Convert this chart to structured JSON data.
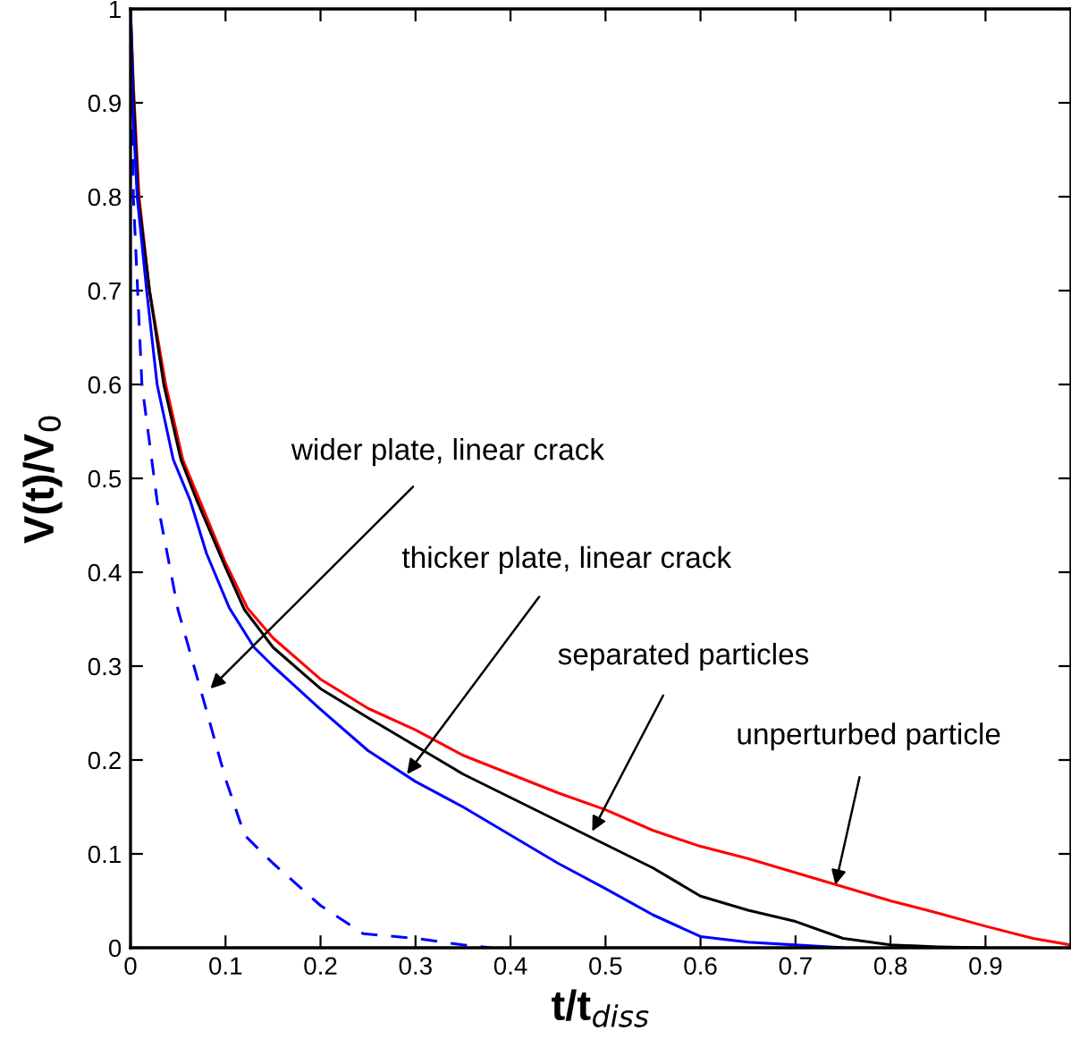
{
  "chart_data": {
    "type": "line",
    "xlabel": "t/t$_{diss}$",
    "ylabel": "V(t)/V$_{0}$",
    "xlim": [
      0,
      0.99
    ],
    "ylim": [
      0,
      1
    ],
    "xticks": [
      0,
      0.1,
      0.2,
      0.3,
      0.4,
      0.5,
      0.6,
      0.7,
      0.8,
      0.9
    ],
    "yticks": [
      0,
      0.1,
      0.2,
      0.3,
      0.4,
      0.5,
      0.6,
      0.7,
      0.8,
      0.9,
      1
    ],
    "grid": false,
    "legend": false,
    "series": [
      {
        "color": "#ff0000",
        "line_style": "solid",
        "x": [
          0,
          0.003,
          0.009,
          0.02,
          0.037,
          0.055,
          0.073,
          0.1,
          0.123,
          0.15,
          0.2,
          0.25,
          0.3,
          0.35,
          0.4,
          0.45,
          0.5,
          0.55,
          0.6,
          0.65,
          0.7,
          0.75,
          0.8,
          0.85,
          0.9,
          0.95,
          0.99
        ],
        "values": [
          1,
          0.92,
          0.8,
          0.7,
          0.6,
          0.52,
          0.476,
          0.41,
          0.362,
          0.33,
          0.286,
          0.255,
          0.232,
          0.205,
          0.185,
          0.165,
          0.147,
          0.125,
          0.108,
          0.095,
          0.08,
          0.065,
          0.05,
          0.037,
          0.023,
          0.01,
          0.003
        ]
      },
      {
        "color": "#000000",
        "line_style": "solid",
        "x": [
          0,
          0.003,
          0.008,
          0.02,
          0.035,
          0.053,
          0.07,
          0.1,
          0.12,
          0.15,
          0.2,
          0.25,
          0.3,
          0.35,
          0.4,
          0.45,
          0.5,
          0.55,
          0.6,
          0.65,
          0.7,
          0.75,
          0.8,
          0.85,
          0.9
        ],
        "values": [
          1,
          0.91,
          0.8,
          0.7,
          0.6,
          0.52,
          0.476,
          0.405,
          0.36,
          0.32,
          0.276,
          0.245,
          0.215,
          0.185,
          0.16,
          0.135,
          0.11,
          0.085,
          0.055,
          0.04,
          0.028,
          0.01,
          0.003,
          0.001,
          0
        ]
      },
      {
        "color": "#0000ff",
        "line_style": "solid",
        "x": [
          0,
          0.002,
          0.007,
          0.017,
          0.028,
          0.045,
          0.063,
          0.08,
          0.104,
          0.13,
          0.15,
          0.2,
          0.25,
          0.3,
          0.35,
          0.4,
          0.45,
          0.5,
          0.55,
          0.6,
          0.65,
          0.7,
          0.75
        ],
        "values": [
          1,
          0.9,
          0.8,
          0.7,
          0.6,
          0.52,
          0.476,
          0.42,
          0.362,
          0.32,
          0.3,
          0.254,
          0.21,
          0.177,
          0.15,
          0.12,
          0.09,
          0.063,
          0.035,
          0.012,
          0.006,
          0.003,
          0
        ]
      },
      {
        "color": "#0000ff",
        "line_style": "dashed",
        "x": [
          0,
          0.003,
          0.012,
          0.028,
          0.05,
          0.076,
          0.1,
          0.12,
          0.15,
          0.2,
          0.245,
          0.3,
          0.35,
          0.38
        ],
        "values": [
          1,
          0.8,
          0.6,
          0.476,
          0.36,
          0.267,
          0.18,
          0.12,
          0.09,
          0.045,
          0.015,
          0.01,
          0.003,
          0
        ]
      }
    ],
    "annotations": [
      {
        "text": "wider plate, linear crack",
        "x": 0.084,
        "y": 0.276
      },
      {
        "text": "thicker plate, linear crack",
        "x": 0.291,
        "y": 0.185
      },
      {
        "text": "separated particles",
        "x": 0.486,
        "y": 0.124
      },
      {
        "text": "unperturbed particle",
        "x": 0.742,
        "y": 0.067
      }
    ]
  }
}
